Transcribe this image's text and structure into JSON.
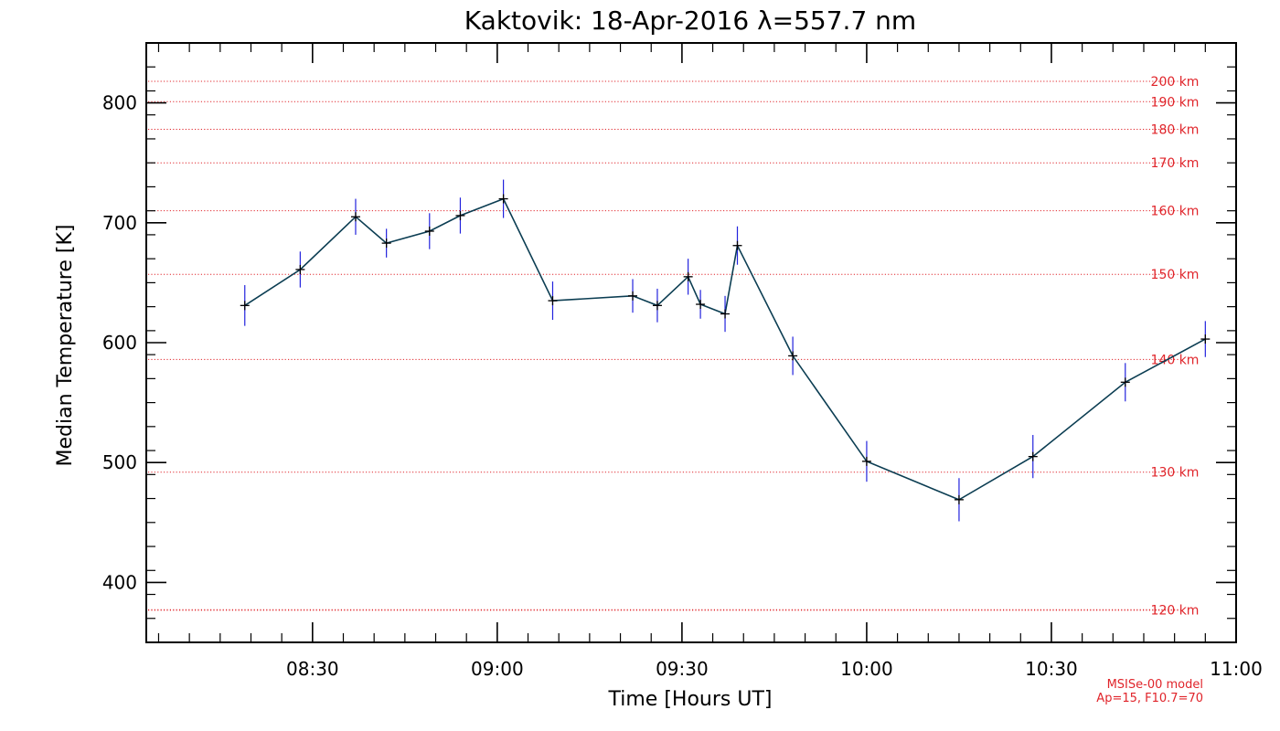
{
  "chart_data": {
    "type": "line",
    "title": "Kaktovik: 18-Apr-2016 λ=557.7 nm",
    "xlabel": "Time [Hours UT]",
    "ylabel": "Median Temperature [K]",
    "x_ticks": [
      "08:30",
      "09:00",
      "09:30",
      "10:00",
      "10:30",
      "11:00"
    ],
    "y_ticks": [
      400,
      500,
      600,
      700,
      800
    ],
    "xlim": [
      "08:03",
      "11:00"
    ],
    "ylim": [
      350,
      850
    ],
    "colors": {
      "line": "#0b3d52",
      "error_bar": "#2222dd",
      "marker": "#000000",
      "reference": "#e0242a"
    },
    "series": [
      {
        "x": [
          "08:19",
          "08:28",
          "08:37",
          "08:42",
          "08:49",
          "08:54",
          "09:01",
          "09:09",
          "09:22",
          "09:26",
          "09:31",
          "09:33",
          "09:37",
          "09:39",
          "09:48",
          "10:00",
          "10:15",
          "10:27",
          "10:42",
          "10:55"
        ],
        "y": [
          631,
          661,
          705,
          683,
          693,
          706,
          720,
          635,
          639,
          631,
          655,
          632,
          624,
          681,
          589,
          501,
          469,
          505,
          567,
          603
        ],
        "err": [
          17,
          15,
          15,
          12,
          15,
          15,
          16,
          16,
          14,
          14,
          15,
          12,
          15,
          16,
          16,
          17,
          18,
          18,
          16,
          15
        ]
      }
    ],
    "reference_lines": {
      "model_note": [
        "MSISe-00 model",
        "Ap=15, F10.7=70"
      ],
      "lines": [
        {
          "label": "120 km",
          "value": 377
        },
        {
          "label": "130 km",
          "value": 492
        },
        {
          "label": "140 km",
          "value": 586
        },
        {
          "label": "150 km",
          "value": 657
        },
        {
          "label": "160 km",
          "value": 710
        },
        {
          "label": "170 km",
          "value": 750
        },
        {
          "label": "180 km",
          "value": 778
        },
        {
          "label": "190 km",
          "value": 801
        },
        {
          "label": "200 km",
          "value": 818
        }
      ]
    }
  }
}
